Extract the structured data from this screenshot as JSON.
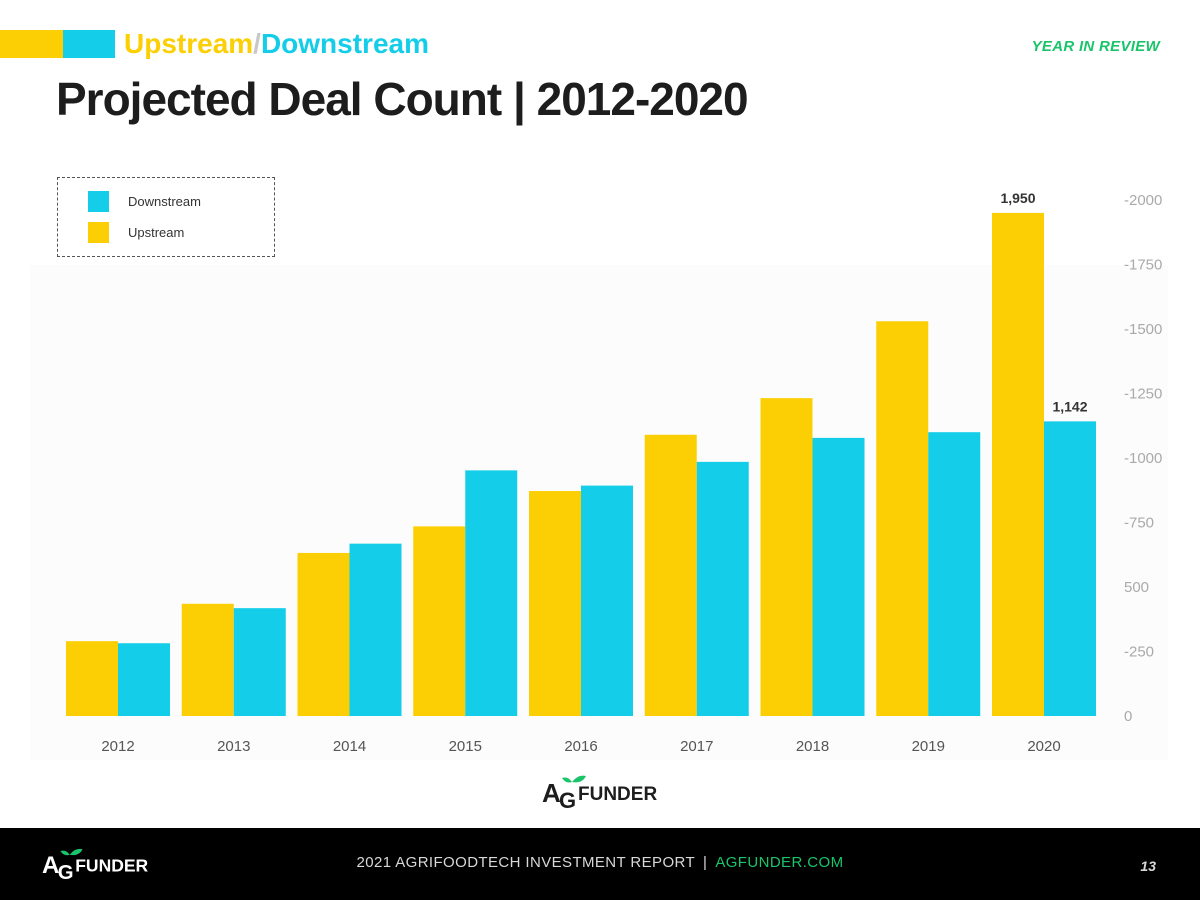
{
  "header": {
    "kicker_upstream": "Upstream",
    "kicker_slash": "/",
    "kicker_downstream": "Downstream",
    "section": "YEAR IN REVIEW",
    "title": "Projected Deal Count | 2012-2020"
  },
  "colors": {
    "upstream": "#fccf04",
    "downstream": "#14cde8",
    "accent_green": "#19c46b",
    "title": "#1d1d1d"
  },
  "chart_data": {
    "type": "bar",
    "title": "Projected Deal Count | 2012-2020",
    "categories": [
      "2012",
      "2013",
      "2014",
      "2015",
      "2016",
      "2017",
      "2018",
      "2019",
      "2020"
    ],
    "series": [
      {
        "name": "Upstream",
        "values": [
          290,
          435,
          632,
          735,
          872,
          1090,
          1232,
          1530,
          1950
        ]
      },
      {
        "name": "Downstream",
        "values": [
          282,
          418,
          668,
          952,
          893,
          985,
          1078,
          1100,
          1142
        ]
      }
    ],
    "data_labels": [
      {
        "series": "Upstream",
        "category": "2020",
        "text": "1,950"
      },
      {
        "series": "Downstream",
        "category": "2020",
        "text": "1,142"
      }
    ],
    "y_ticks": [
      {
        "value": 0,
        "label": "0"
      },
      {
        "value": 250,
        "label": "-250"
      },
      {
        "value": 500,
        "label": "500"
      },
      {
        "value": 750,
        "label": "-750"
      },
      {
        "value": 1000,
        "label": "-1000"
      },
      {
        "value": 1250,
        "label": "-1250"
      },
      {
        "value": 1500,
        "label": "-1500"
      },
      {
        "value": 1750,
        "label": "-1750"
      },
      {
        "value": 2000,
        "label": "-2000"
      }
    ],
    "ylim": [
      0,
      2000
    ],
    "xlabel": "",
    "ylabel": "",
    "y_axis_side": "right",
    "grid": false,
    "legend": {
      "placement": "top-left",
      "entries": [
        "Downstream",
        "Upstream"
      ]
    }
  },
  "branding": {
    "logo_a": "A",
    "logo_g": "G",
    "logo_rest": "FUNDER"
  },
  "footer": {
    "report": "2021 AGRIFOODTECH INVESTMENT REPORT",
    "separator": "|",
    "url": "AGFUNDER.COM",
    "page_number": "13"
  }
}
